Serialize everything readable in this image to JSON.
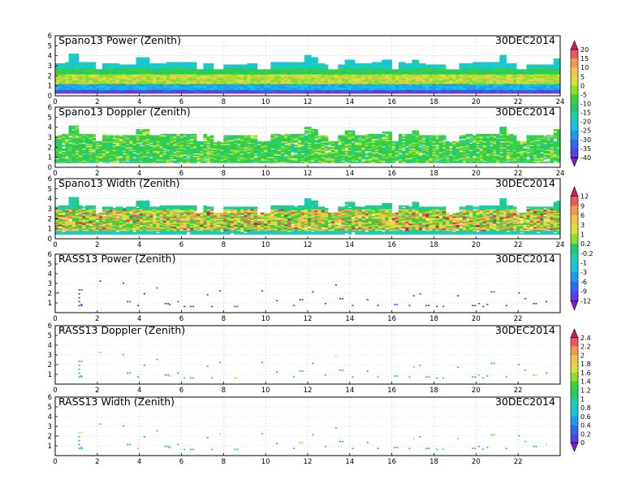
{
  "colors": {
    "spectrum": [
      "#8a1ad6",
      "#5a3ee8",
      "#2f6bf0",
      "#1f9be8",
      "#18c3df",
      "#1bcfb0",
      "#22c870",
      "#3ad23a",
      "#8ade2e",
      "#d9e03a",
      "#f0c64a",
      "#ef9a4e",
      "#e95a58",
      "#d21f5a"
    ]
  },
  "chart_data": [
    {
      "type": "heatmap",
      "title": "Spano13 Power (Zenith)",
      "date": "30DEC2014",
      "x_ticks": [
        "0",
        "2",
        "4",
        "6",
        "8",
        "10",
        "12",
        "14",
        "16",
        "18",
        "20",
        "22",
        "24"
      ],
      "y_ticks": [
        "0",
        "1",
        "2",
        "3",
        "4",
        "5",
        "6"
      ],
      "xlim": [
        0,
        24
      ],
      "ylim": [
        0,
        6
      ],
      "colorbar": {
        "labels": [
          "20",
          "15",
          "10",
          "5",
          "0",
          "-5",
          "-10",
          "-15",
          "-20",
          "-25",
          "-30",
          "-35",
          "-40"
        ],
        "arrows": true
      },
      "field": {
        "kind": "radar",
        "variable": "power"
      }
    },
    {
      "type": "heatmap",
      "title": "Spano13 Doppler (Zenith)",
      "date": "30DEC2014",
      "x_ticks": [
        "0",
        "2",
        "4",
        "6",
        "8",
        "10",
        "12",
        "14",
        "16",
        "18",
        "20",
        "22",
        "24"
      ],
      "y_ticks": [
        "0",
        "1",
        "2",
        "3",
        "4",
        "5",
        "6"
      ],
      "xlim": [
        0,
        24
      ],
      "ylim": [
        0,
        6
      ],
      "field": {
        "kind": "radar",
        "variable": "doppler"
      }
    },
    {
      "type": "heatmap",
      "title": "Spano13 Width (Zenith)",
      "date": "30DEC2014",
      "x_ticks": [
        "0",
        "2",
        "4",
        "6",
        "8",
        "10",
        "12",
        "14",
        "16",
        "18",
        "20",
        "22",
        "24"
      ],
      "y_ticks": [
        "0",
        "1",
        "2",
        "3",
        "4",
        "5",
        "6"
      ],
      "xlim": [
        0,
        24
      ],
      "ylim": [
        0,
        6
      ],
      "colorbar": {
        "labels": [
          "12",
          "9",
          "6",
          "3",
          "1",
          "0.2",
          "-0.2",
          "-1",
          "-3",
          "-6",
          "-9",
          "-12"
        ],
        "arrows": true
      },
      "field": {
        "kind": "radar",
        "variable": "width"
      }
    },
    {
      "type": "scatter",
      "title": "RASS13 Power (Zenith)",
      "date": "30DEC2014",
      "x_ticks": [
        "0",
        "2",
        "4",
        "6",
        "8",
        "10",
        "12",
        "14",
        "16",
        "18",
        "20",
        "22"
      ],
      "y_ticks": [
        "1",
        "2",
        "3",
        "4",
        "5",
        "6"
      ],
      "xlim": [
        0,
        24
      ],
      "ylim": [
        0,
        6
      ],
      "field": {
        "kind": "rass",
        "variable": "power"
      }
    },
    {
      "type": "scatter",
      "title": "RASS13 Doppler (Zenith)",
      "date": "30DEC2014",
      "x_ticks": [
        "0",
        "2",
        "4",
        "6",
        "8",
        "10",
        "12",
        "14",
        "16",
        "18",
        "20",
        "22"
      ],
      "y_ticks": [
        "1",
        "2",
        "3",
        "4",
        "5",
        "6"
      ],
      "xlim": [
        0,
        24
      ],
      "ylim": [
        0,
        6
      ],
      "colorbar": {
        "labels": [
          "2.4",
          "2.2",
          "2",
          "1.8",
          "1.6",
          "1.4",
          "1.2",
          "1",
          "0.8",
          "0.6",
          "0.4",
          "0.2",
          "0"
        ],
        "arrows": true
      },
      "field": {
        "kind": "rass",
        "variable": "doppler"
      }
    },
    {
      "type": "scatter",
      "title": "RASS13 Width (Zenith)",
      "date": "30DEC2014",
      "x_ticks": [
        "0",
        "2",
        "4",
        "6",
        "8",
        "10",
        "12",
        "14",
        "16",
        "18",
        "20",
        "22"
      ],
      "y_ticks": [
        "1",
        "2",
        "3",
        "4",
        "5",
        "6"
      ],
      "xlim": [
        0,
        24
      ],
      "ylim": [
        0,
        6
      ],
      "field": {
        "kind": "rass",
        "variable": "width"
      }
    }
  ]
}
